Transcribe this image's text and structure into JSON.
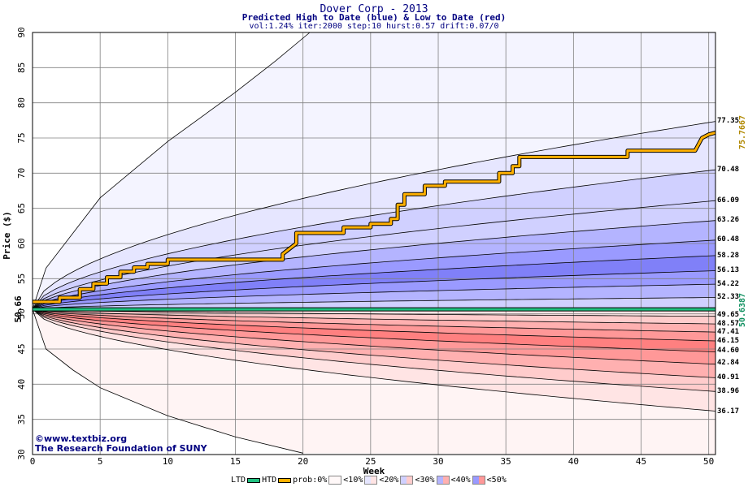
{
  "header": {
    "title": "Dover Corp - 2013",
    "subtitle": "Predicted High to Date (blue) &  Low to Date (red)",
    "params": "vol:1.24% iter:2000 step:10 hurst:0.57 drift:0.07/0"
  },
  "watermark": {
    "line1": "©www.textbiz.org",
    "line2": "The Research Foundation of SUNY"
  },
  "legend": {
    "ltd": "LTD",
    "htd": "HTD",
    "prob": "prob:0%",
    "p10": "<10%",
    "p20": "<20%",
    "p30": "<30%",
    "p40": "<40%",
    "p50": "<50%"
  },
  "colors": {
    "grid": "#808080",
    "ltd": "#20c080",
    "htd": "#ffb000",
    "blue_bands": [
      "#f4f4ff",
      "#e6e6ff",
      "#d0d0ff",
      "#b4b4ff",
      "#9a9aff",
      "#8080f8"
    ],
    "red_bands": [
      "#fff4f4",
      "#ffe4e4",
      "#ffcccc",
      "#ffb0b0",
      "#ff9898",
      "#ff8080"
    ]
  },
  "chart_data": {
    "type": "area",
    "title": "Dover Corp - 2013",
    "xlabel": "Week",
    "ylabel": "Price ($)",
    "xlim": [
      0,
      50.5
    ],
    "ylim": [
      30,
      90
    ],
    "x_ticks": [
      "0",
      "5",
      "10",
      "15",
      "20",
      "25",
      "30",
      "35",
      "40",
      "45",
      "50"
    ],
    "y_ticks": [
      "30",
      "35",
      "40",
      "45",
      "50",
      "55",
      "60",
      "65",
      "70",
      "75",
      "80",
      "85",
      "90"
    ],
    "start_price": 50.66,
    "start_label": "50.66",
    "current_htd": 75.7667,
    "current_htd_label": "75.7667",
    "current_ltd": 50.6387,
    "current_ltd_label": "50.6387",
    "high_bands_end": [
      77.35,
      70.48,
      66.09,
      63.26,
      60.48,
      58.28,
      56.13,
      54.22,
      52.33
    ],
    "high_labels": [
      "77.35",
      "70.48",
      "66.09",
      "63.26",
      "60.48",
      "58.28",
      "56.13",
      "54.22",
      "52.33"
    ],
    "low_bands_end": [
      49.65,
      48.57,
      47.41,
      46.15,
      44.6,
      42.84,
      40.91,
      38.96,
      36.17
    ],
    "low_labels": [
      "49.65",
      "48.57",
      "47.41",
      "46.15",
      "44.60",
      "42.84",
      "40.91",
      "38.96",
      "36.17"
    ],
    "outer_high_curve": [
      [
        0,
        50.66
      ],
      [
        1,
        56.5
      ],
      [
        3,
        61.5
      ],
      [
        5,
        66.5
      ],
      [
        10,
        74.5
      ],
      [
        15,
        81.5
      ],
      [
        18,
        86
      ],
      [
        20.5,
        90
      ]
    ],
    "outer_low_curve": [
      [
        0,
        50.66
      ],
      [
        1,
        45
      ],
      [
        3,
        42
      ],
      [
        5,
        39.5
      ],
      [
        10,
        35.5
      ],
      [
        15,
        32.5
      ],
      [
        20,
        30.2
      ]
    ],
    "htd_series": [
      [
        0,
        51.7
      ],
      [
        2,
        51.7
      ],
      [
        2,
        52.3
      ],
      [
        3.5,
        52.3
      ],
      [
        3.5,
        53.5
      ],
      [
        4.5,
        53.5
      ],
      [
        4.5,
        54.3
      ],
      [
        5.5,
        54.3
      ],
      [
        5.5,
        55.2
      ],
      [
        6.5,
        55.2
      ],
      [
        6.5,
        56
      ],
      [
        7.5,
        56
      ],
      [
        7.5,
        56.6
      ],
      [
        8.5,
        56.6
      ],
      [
        8.5,
        57.1
      ],
      [
        10,
        57.1
      ],
      [
        10,
        57.7
      ],
      [
        18.5,
        57.7
      ],
      [
        18.5,
        58.5
      ],
      [
        19.5,
        60
      ],
      [
        19.5,
        61.5
      ],
      [
        23,
        61.5
      ],
      [
        23,
        62.3
      ],
      [
        25,
        62.3
      ],
      [
        25,
        62.8
      ],
      [
        26.5,
        62.8
      ],
      [
        26.5,
        63.5
      ],
      [
        27,
        63.5
      ],
      [
        27,
        65.5
      ],
      [
        27.5,
        65.5
      ],
      [
        27.5,
        67
      ],
      [
        29,
        67
      ],
      [
        29,
        68.2
      ],
      [
        30.5,
        68.2
      ],
      [
        30.5,
        68.8
      ],
      [
        34.5,
        68.8
      ],
      [
        34.5,
        70
      ],
      [
        35.5,
        70
      ],
      [
        35.5,
        71
      ],
      [
        36,
        71
      ],
      [
        36,
        72.3
      ],
      [
        44,
        72.3
      ],
      [
        44,
        73.2
      ],
      [
        49,
        73.2
      ],
      [
        49.5,
        75
      ],
      [
        50,
        75.5
      ],
      [
        50.5,
        75.7667
      ]
    ]
  }
}
